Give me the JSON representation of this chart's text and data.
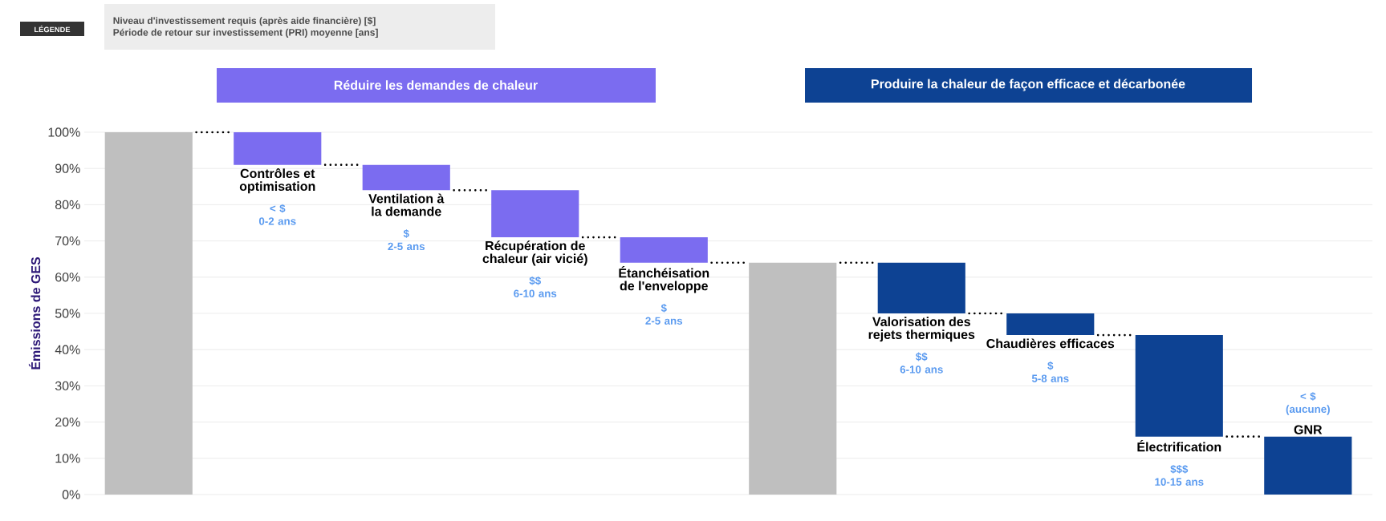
{
  "chart_data": {
    "type": "bar",
    "ylabel": "Émissions de GES",
    "categories": [
      null,
      "Contrôles et optimisation",
      "Ventilation à la demande",
      "Récupération de chaleur (air vicié)",
      "Étanchéisation de l'enveloppe",
      null,
      "Valorisation des rejets thermiques",
      "Chaudières efficaces",
      "Électrification",
      "GNR"
    ],
    "base": [
      0,
      100,
      91,
      84,
      71,
      0,
      64,
      50,
      44,
      0
    ],
    "values": [
      100,
      -9,
      -7,
      -13,
      -7,
      64,
      -14,
      -6,
      -28,
      16
    ],
    "colors": [
      "#bfbfbf",
      "#7b6cf0",
      "#7b6cf0",
      "#7b6cf0",
      "#7b6cf0",
      "#bfbfbf",
      "#0d4293",
      "#0d4293",
      "#0d4293",
      "#0d4293"
    ],
    "ylim": [
      0,
      100
    ],
    "yticks": [
      {
        "value": 0,
        "label": "0%"
      },
      {
        "value": 10,
        "label": "10%"
      },
      {
        "value": 20,
        "label": "20%"
      },
      {
        "value": 30,
        "label": "30%"
      },
      {
        "value": 40,
        "label": "40%"
      },
      {
        "value": 50,
        "label": "50%"
      },
      {
        "value": 60,
        "label": "60%"
      },
      {
        "value": 70,
        "label": "70%"
      },
      {
        "value": 80,
        "label": "80%"
      },
      {
        "value": 90,
        "label": "90%"
      },
      {
        "value": 100,
        "label": "100%"
      }
    ],
    "grid": "y",
    "annotations": [
      "LÉGENDE",
      "Niveau d'investissement requis (après aide financière) [$]",
      "Période de retour sur investissement (PRI) moyenne [ans]",
      "Réduire les demandes de chaleur",
      "Produire la chaleur de façon efficace et décarbonée",
      "< $",
      "0-2 ans",
      "$",
      "2-5 ans",
      "$$",
      "6-10 ans",
      "$",
      "2-5 ans",
      "$$",
      "6-10 ans",
      "$",
      "5-8 ans",
      "$$$",
      "10-15 ans",
      "< $",
      "(aucune)"
    ]
  }
}
